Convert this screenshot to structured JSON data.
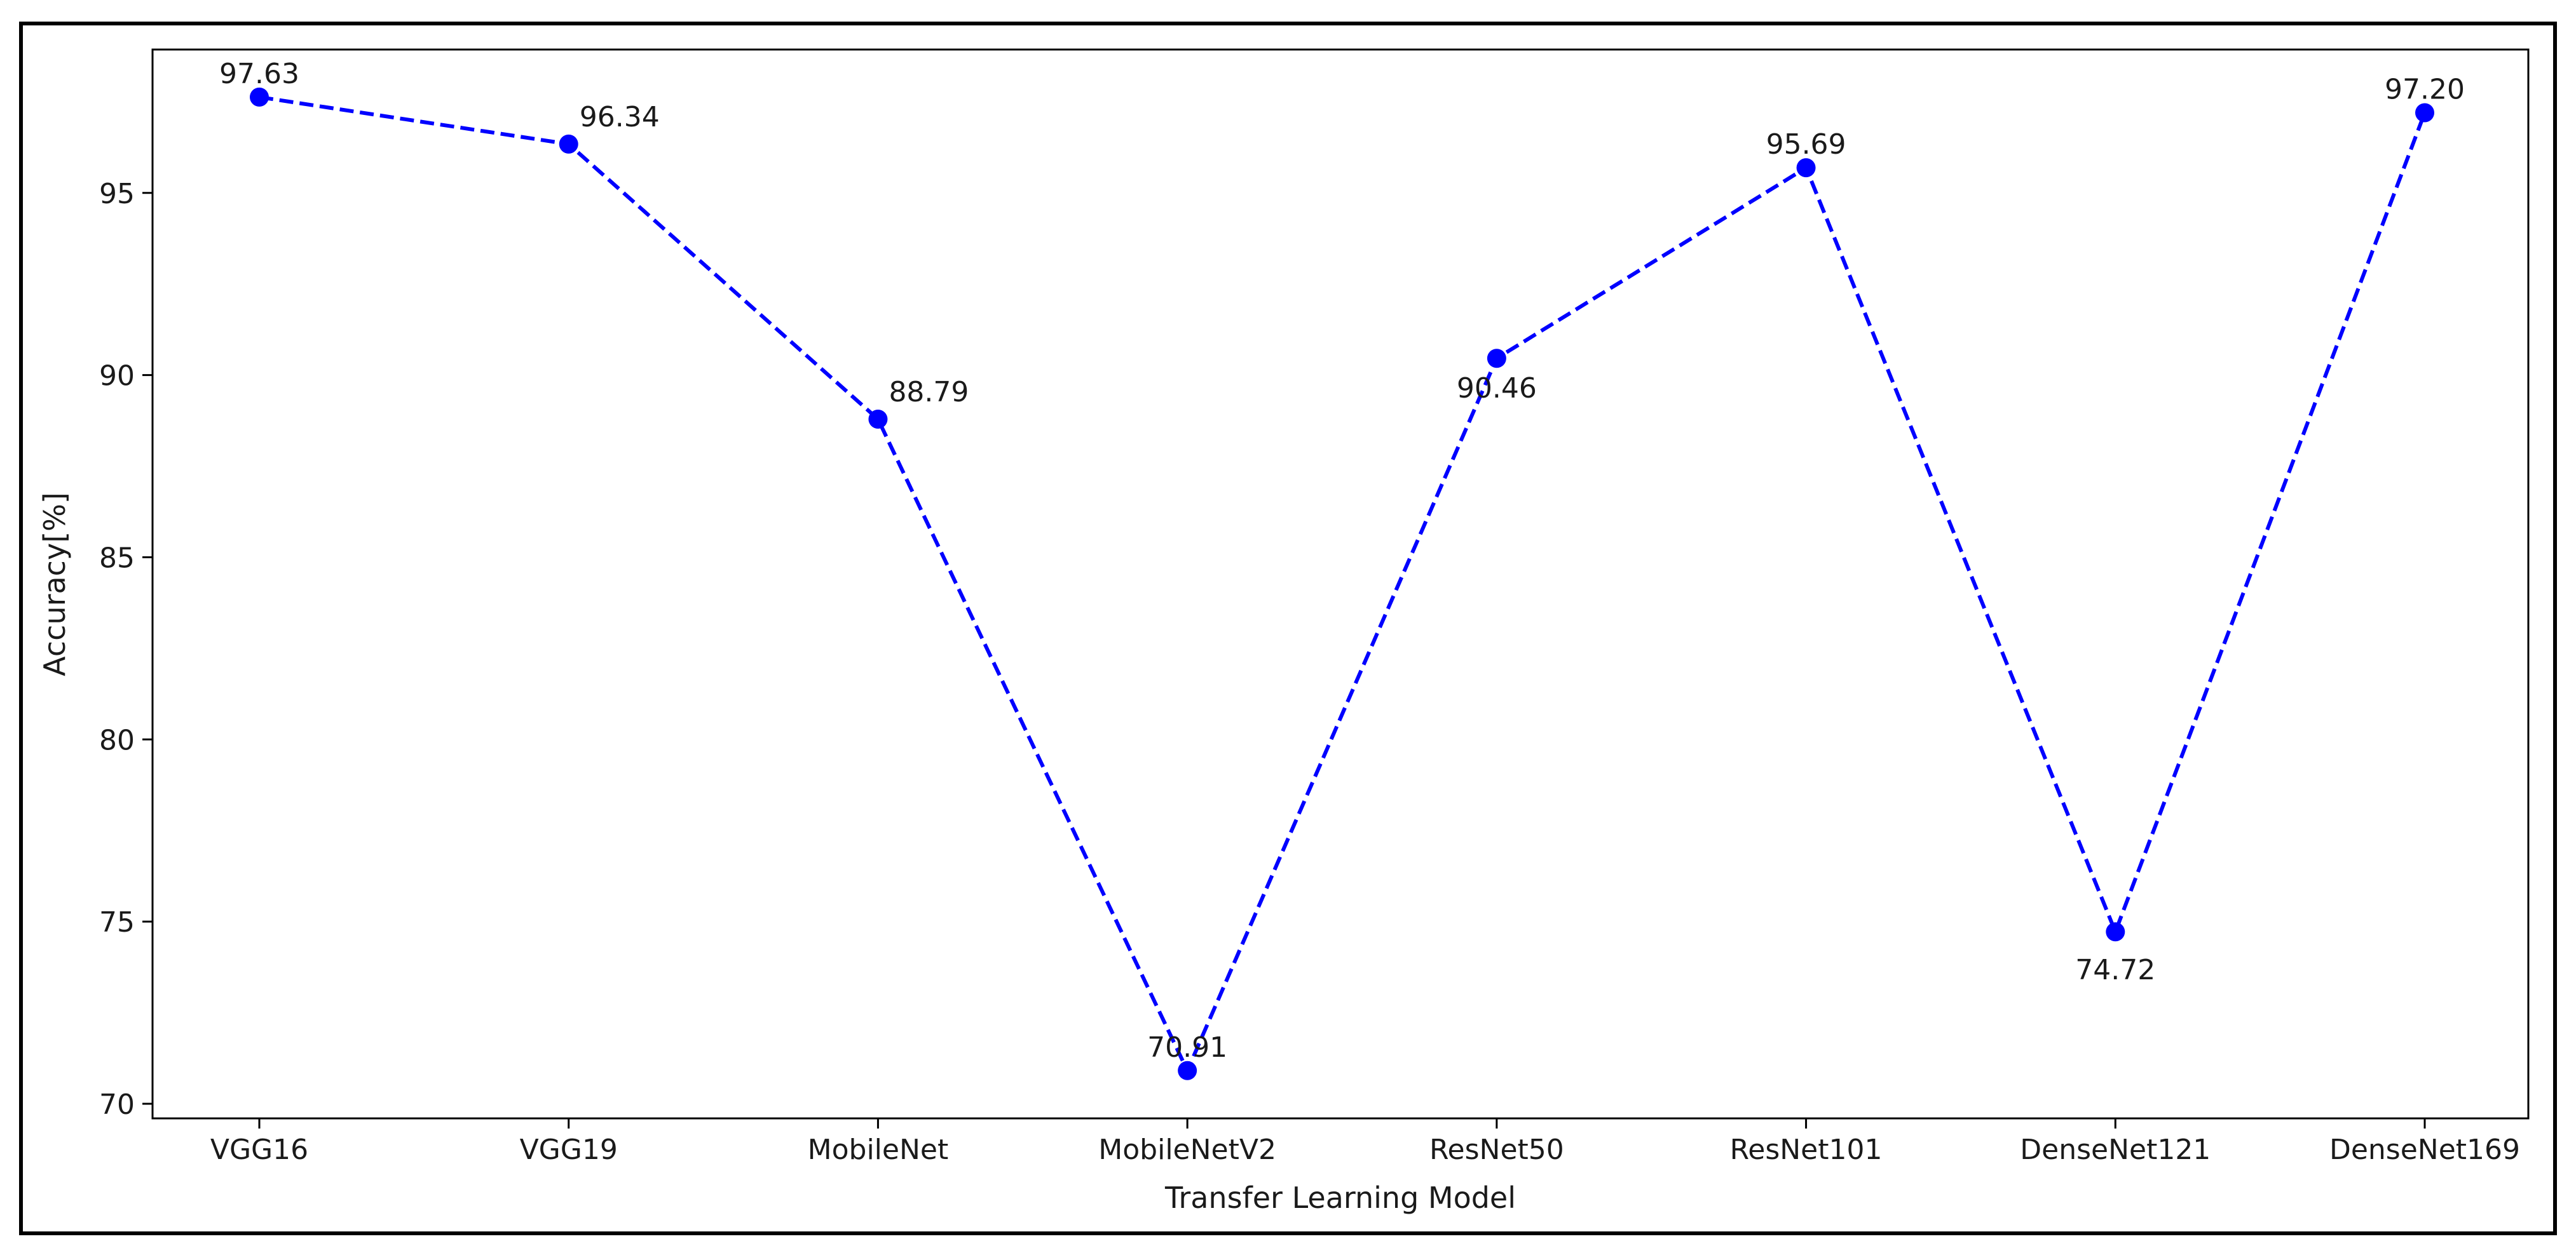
{
  "chart_data": {
    "type": "line",
    "title": "",
    "xlabel": "Transfer Learning Model",
    "ylabel": "Accuracy[%]",
    "categories": [
      "VGG16",
      "VGG19",
      "MobileNet",
      "MobileNetV2",
      "ResNet50",
      "ResNet101",
      "DenseNet121",
      "DenseNet169"
    ],
    "series": [
      {
        "values": [
          97.63,
          96.34,
          88.79,
          70.91,
          90.46,
          95.69,
          74.72,
          97.2
        ],
        "labels": [
          "97.63",
          "96.34",
          "88.79",
          "70.91",
          "90.46",
          "95.69",
          "74.72",
          "97.20"
        ],
        "line_style": "dashed",
        "marker": "circle",
        "color": "#0000ff"
      }
    ],
    "ylim": [
      69.6,
      98.5
    ],
    "yticks": [
      70,
      75,
      80,
      85,
      90,
      95
    ],
    "grid": false,
    "legend": "none"
  }
}
